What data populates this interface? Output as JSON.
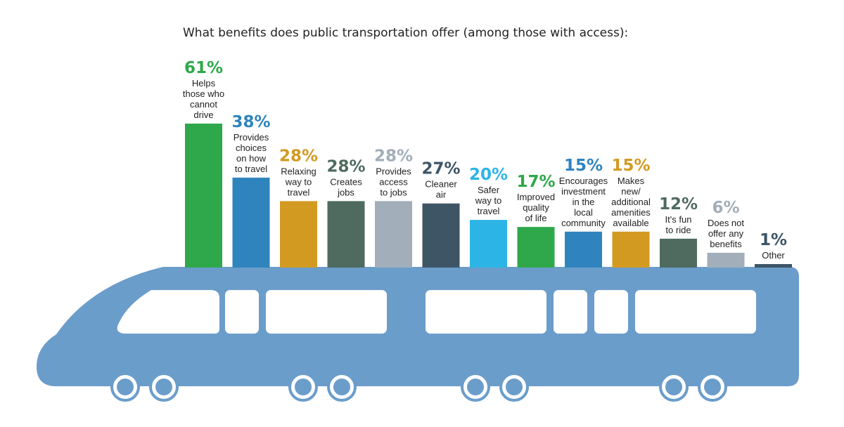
{
  "chart_data": {
    "type": "bar",
    "title": "What benefits does public transportation offer (among those with access):",
    "xlabel": "",
    "ylabel": "",
    "ylim": [
      0,
      61
    ],
    "grid": false,
    "legend": "none",
    "categories": [
      [
        "Helps",
        "those who",
        "cannot",
        "drive"
      ],
      [
        "Provides",
        "choices",
        "on how",
        "to travel"
      ],
      [
        "Relaxing",
        "way to",
        "travel"
      ],
      [
        "Creates",
        "jobs"
      ],
      [
        "Provides",
        "access",
        "to jobs"
      ],
      [
        "Cleaner",
        "air"
      ],
      [
        "Safer",
        "way to",
        "travel"
      ],
      [
        "Improved",
        "quality",
        "of life"
      ],
      [
        "Encourages",
        "investment",
        "in the",
        "local",
        "community"
      ],
      [
        "Makes",
        "new/",
        "additional",
        "amenities",
        "available"
      ],
      [
        "It's fun",
        "to ride"
      ],
      [
        "Does not",
        "offer any",
        "benefits"
      ],
      [
        "Other"
      ]
    ],
    "values": [
      61,
      38,
      28,
      28,
      28,
      27,
      20,
      17,
      15,
      15,
      12,
      6,
      1
    ],
    "value_labels": [
      "61%",
      "38%",
      "28%",
      "28%",
      "28%",
      "27%",
      "20%",
      "17%",
      "15%",
      "15%",
      "12%",
      "6%",
      "1%"
    ],
    "colors": [
      "#2ea84a",
      "#2f84be",
      "#d39a22",
      "#4f6b5f",
      "#a2aeb9",
      "#3e5566",
      "#2db4e6",
      "#2ea84a",
      "#2f84be",
      "#d39a22",
      "#4f6b5f",
      "#a2aeb9",
      "#3e5566"
    ]
  },
  "train": {
    "body_color": "#6b9dcb",
    "window_color": "#ffffff",
    "wheel_color": "#6b9dcb"
  }
}
